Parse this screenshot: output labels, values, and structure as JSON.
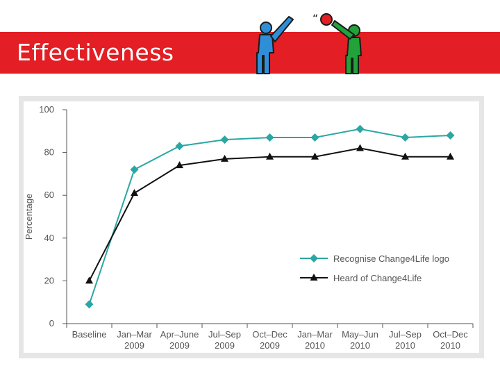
{
  "slide": {
    "title": "Effectiveness"
  },
  "figure": {
    "motion_mark": "“"
  },
  "colors": {
    "title_bar": "#e31e24",
    "teal": "#2aa7a3",
    "black": "#111111",
    "blue_figure": "#2e8fd8",
    "green_figure": "#22a33a",
    "ball": "#e31e24"
  },
  "chart_data": {
    "type": "line",
    "ylabel": "Percentage",
    "ylim": [
      0,
      100
    ],
    "yticks": [
      0,
      20,
      40,
      60,
      80,
      100
    ],
    "categories": [
      [
        "Baseline"
      ],
      [
        "Jan–Mar",
        "2009"
      ],
      [
        "Apr–June",
        "2009"
      ],
      [
        "Jul–Sep",
        "2009"
      ],
      [
        "Oct–Dec",
        "2009"
      ],
      [
        "Jan–Mar",
        "2010"
      ],
      [
        "May–Jun",
        "2010"
      ],
      [
        "Jul–Sep",
        "2010"
      ],
      [
        "Oct–Dec",
        "2010"
      ]
    ],
    "series": [
      {
        "name": "Recognise Change4Life logo",
        "marker": "diamond",
        "color": "#2aa7a3",
        "values": [
          9,
          72,
          83,
          86,
          87,
          87,
          91,
          87,
          88
        ]
      },
      {
        "name": "Heard of Change4Life",
        "marker": "triangle",
        "color": "#111111",
        "values": [
          20,
          61,
          74,
          77,
          78,
          78,
          82,
          78,
          78
        ]
      }
    ],
    "legend_position": "lower-right"
  }
}
